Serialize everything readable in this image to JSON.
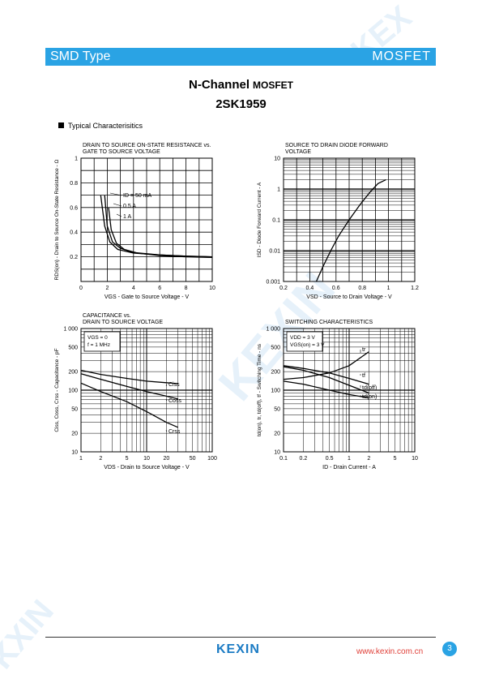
{
  "header": {
    "left": "SMD Type",
    "right": "MOSFET"
  },
  "title": {
    "line1": "N-Channel",
    "line1_small": "MOSFET",
    "part": "2SK1959"
  },
  "section": "Typical  Characterisitics",
  "chart_data": [
    {
      "type": "line",
      "title": "DRAIN TO SOURCE ON-STATE RESISTANCE vs. GATE TO SOURCE VOLTAGE",
      "xlabel": "VGS - Gate to Source Voltage - V",
      "ylabel": "RDS(on) - Drain to Source On-State Resistance - Ω",
      "xlim": [
        0,
        10
      ],
      "ylim": [
        0,
        1
      ],
      "xticks": [
        "0",
        "2",
        "4",
        "6",
        "8",
        "10"
      ],
      "yticks": [
        "0.2",
        "0.4",
        "0.6",
        "0.8",
        "1"
      ],
      "series": [
        {
          "name": "ID = 50 mA",
          "x": [
            1.5,
            1.8,
            2.2,
            2.8,
            4,
            6,
            8,
            10
          ],
          "y": [
            0.7,
            0.45,
            0.32,
            0.26,
            0.23,
            0.215,
            0.205,
            0.2
          ]
        },
        {
          "name": "0.5 A",
          "x": [
            1.8,
            2.0,
            2.4,
            3.0,
            4,
            6,
            8,
            10
          ],
          "y": [
            0.7,
            0.45,
            0.32,
            0.27,
            0.235,
            0.215,
            0.205,
            0.2
          ]
        },
        {
          "name": "1 A",
          "x": [
            2.1,
            2.3,
            2.7,
            3.3,
            4.3,
            6,
            8,
            10
          ],
          "y": [
            0.6,
            0.42,
            0.31,
            0.26,
            0.23,
            0.21,
            0.2,
            0.195
          ]
        }
      ]
    },
    {
      "type": "line",
      "title": "SOURCE TO DRAIN DIODE FORWARD VOLTAGE",
      "xlabel": "VSD - Source to Drain Voltage - V",
      "ylabel": "ISD - Diode Forward Current - A",
      "xlim": [
        0.2,
        1.2
      ],
      "ylim": [
        0.001,
        10
      ],
      "yscale": "log",
      "xticks": [
        "0.2",
        "0.4",
        "0.6",
        "0.8",
        "1",
        "1.2"
      ],
      "yticks": [
        "0.001",
        "0.01",
        "0.1",
        "1",
        "10"
      ],
      "series": [
        {
          "name": "",
          "x": [
            0.45,
            0.5,
            0.56,
            0.62,
            0.7,
            0.78,
            0.86,
            0.92,
            0.98
          ],
          "y": [
            0.001,
            0.003,
            0.01,
            0.03,
            0.1,
            0.3,
            0.8,
            1.5,
            2
          ]
        }
      ]
    },
    {
      "type": "line",
      "title": "CAPACITANCE vs. DRAIN TO SOURCE VOLTAGE",
      "xlabel": "VDS - Drain to Source Voltage - V",
      "ylabel": "Ciss, Coss, Crss - Capacitance - pF",
      "xlim": [
        1,
        100
      ],
      "ylim": [
        10,
        1000
      ],
      "xscale": "log",
      "yscale": "log",
      "xticks": [
        "1",
        "2",
        "5",
        "10",
        "20",
        "50",
        "100"
      ],
      "yticks": [
        "10",
        "20",
        "50",
        "100",
        "200",
        "500",
        "1 000"
      ],
      "conditions": [
        "VGS = 0",
        "f = 1 MHz"
      ],
      "series": [
        {
          "name": "Ciss",
          "x": [
            1,
            2,
            5,
            10,
            20,
            30
          ],
          "y": [
            210,
            180,
            155,
            140,
            132,
            128
          ]
        },
        {
          "name": "Coss",
          "x": [
            1,
            2,
            5,
            10,
            20,
            30
          ],
          "y": [
            185,
            150,
            115,
            95,
            80,
            72
          ]
        },
        {
          "name": "Crss",
          "x": [
            1,
            2,
            5,
            10,
            20,
            30
          ],
          "y": [
            130,
            95,
            65,
            45,
            30,
            25
          ]
        }
      ]
    },
    {
      "type": "line",
      "title": "SWITCHING CHARACTERISTICS",
      "xlabel": "ID - Drain Current - A",
      "ylabel": "td(on), tr, td(off), tf - Switching Time - ns",
      "xlim": [
        0.1,
        10
      ],
      "ylim": [
        10,
        1000
      ],
      "xscale": "log",
      "yscale": "log",
      "xticks": [
        "0.1",
        "0.2",
        "0.5",
        "1",
        "2",
        "5",
        "10"
      ],
      "yticks": [
        "10",
        "20",
        "50",
        "100",
        "200",
        "500",
        "1 000"
      ],
      "conditions": [
        "VDD = 3 V",
        "VGS(on) = 3 V"
      ],
      "series": [
        {
          "name": "tr",
          "x": [
            0.1,
            0.2,
            0.5,
            1,
            2
          ],
          "y": [
            150,
            160,
            190,
            250,
            420
          ]
        },
        {
          "name": "tf",
          "x": [
            0.1,
            0.2,
            0.5,
            1,
            2
          ],
          "y": [
            250,
            225,
            190,
            155,
            125
          ]
        },
        {
          "name": "td(off)",
          "x": [
            0.1,
            0.2,
            0.5,
            1,
            2
          ],
          "y": [
            240,
            210,
            160,
            120,
            90
          ]
        },
        {
          "name": "td(on)",
          "x": [
            0.1,
            0.2,
            0.5,
            1,
            2
          ],
          "y": [
            140,
            125,
            100,
            85,
            75
          ]
        }
      ]
    }
  ],
  "footer": {
    "logo": "KEXIN",
    "url": "www.kexin.com.cn",
    "page": "3"
  },
  "colors": {
    "accent": "#2aa3e4",
    "logo": "#1b7bc4",
    "url": "#e0413a"
  }
}
